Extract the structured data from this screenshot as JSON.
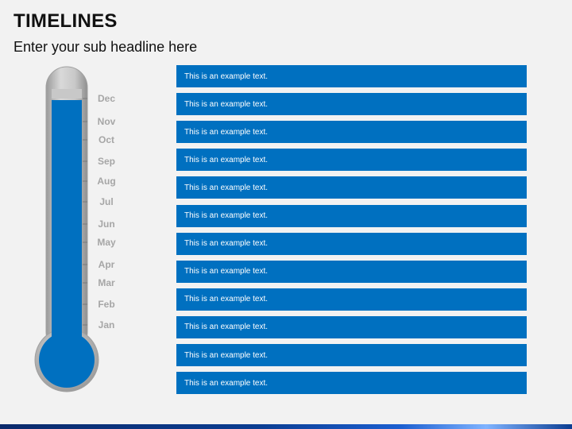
{
  "title": "TIMELINES",
  "subtitle": "Enter your sub headline here",
  "colors": {
    "background": "#f2f2f2",
    "accent_blue": "#0070c0",
    "month_text": "#a6a6a6",
    "tube_gray": "#bfbfbf"
  },
  "thermometer": {
    "months": [
      "Dec",
      "Nov",
      "Oct",
      "Sep",
      "Aug",
      "Jul",
      "Jun",
      "May",
      "Apr",
      "Mar",
      "Feb",
      "Jan"
    ],
    "fill_fraction": 0.95
  },
  "rows": [
    "This is an example text.",
    "This is an example text.",
    "This is an example text.",
    "This is an example text.",
    "This is an example text.",
    "This is an example text.",
    "This is an example text.",
    "This is an example text.",
    "This is an example text.",
    "This is an example text.",
    "This is an example text.",
    "This is an example text."
  ]
}
